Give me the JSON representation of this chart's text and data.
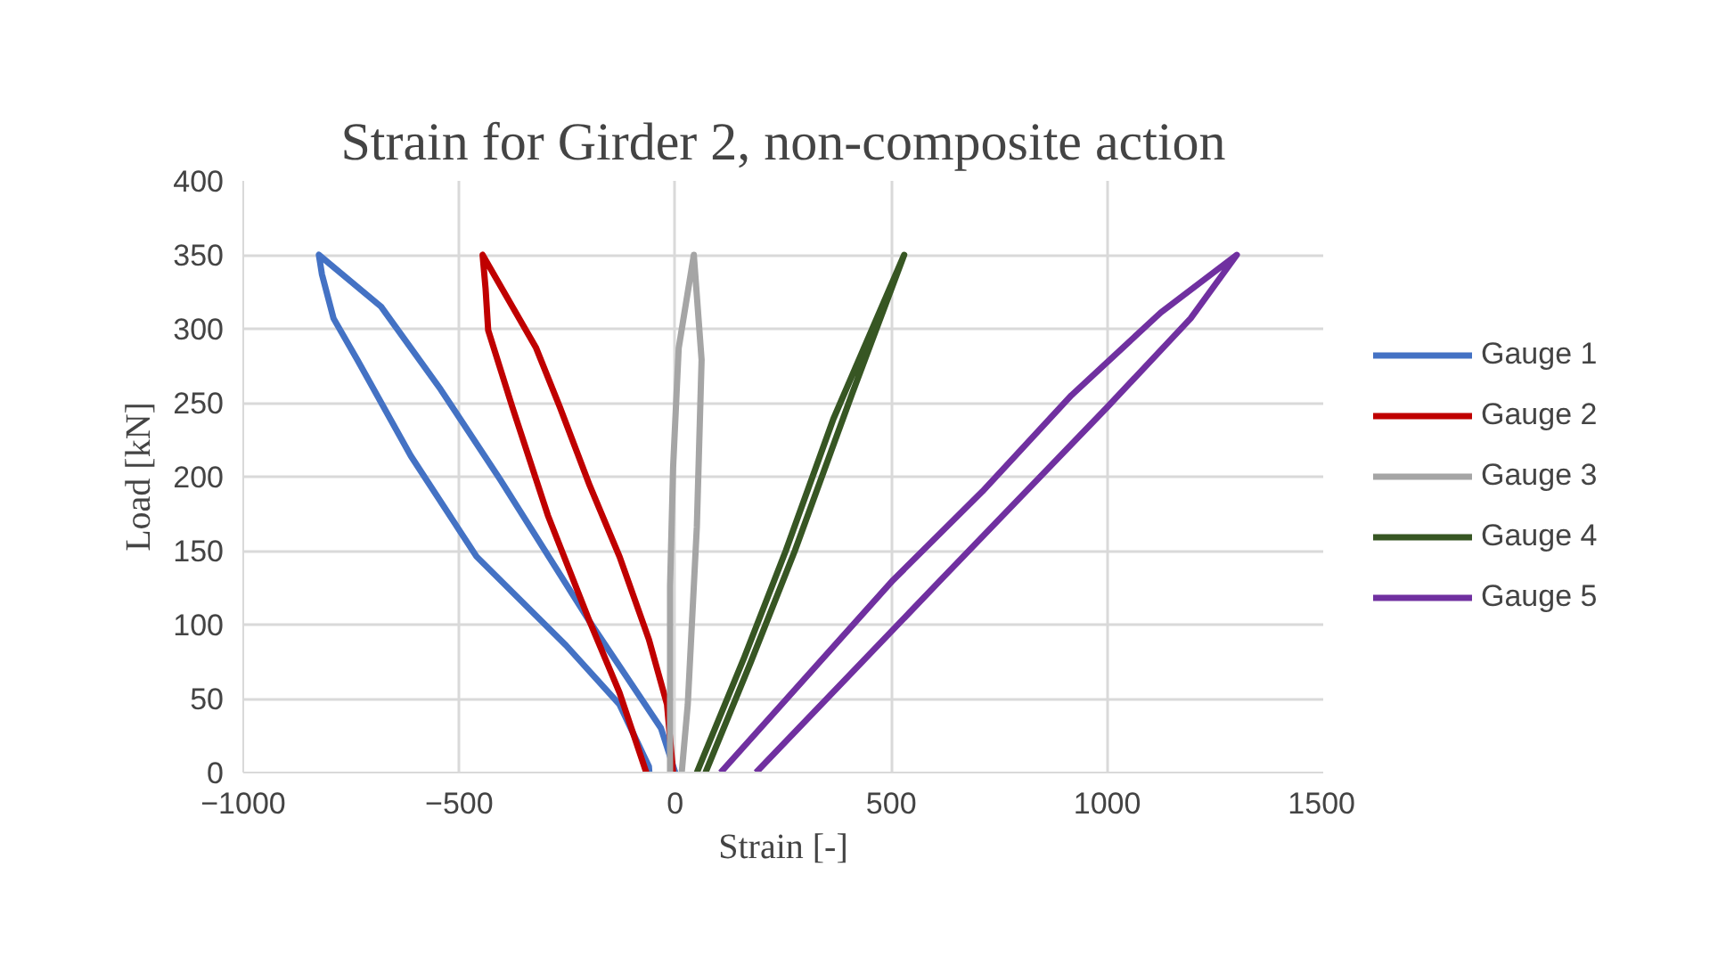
{
  "chart_data": {
    "type": "line",
    "title": "Strain for Girder 2, non-composite action",
    "xlabel": "Strain [-]",
    "ylabel": "Load [kN]",
    "xlim": [
      -1000,
      1500
    ],
    "xticks": [
      -1000,
      -500,
      0,
      500,
      1000,
      1500
    ],
    "ylim": [
      0,
      400
    ],
    "yticks": [
      0,
      50,
      100,
      150,
      200,
      250,
      300,
      350,
      400
    ],
    "grid": true,
    "legend": "right",
    "marker": "none",
    "line_style": "solid",
    "series": [
      {
        "name": "Gauge 1",
        "color": "#4472c4",
        "x": [
          0,
          -33,
          -198,
          -405,
          -543,
          -681,
          -825,
          -818,
          -791,
          -736,
          -612,
          -460,
          -253,
          -129,
          -61,
          -60
        ],
        "values": [
          0,
          30,
          102,
          198,
          259,
          315,
          350,
          337,
          307,
          279,
          214,
          146,
          86,
          46,
          4,
          0
        ]
      },
      {
        "name": "Gauge 2",
        "color": "#c00000",
        "x": [
          -5,
          -19,
          -61,
          -129,
          -198,
          -267,
          -322,
          -446,
          -439,
          -433,
          -377,
          -295,
          -198,
          -129,
          -67
        ],
        "values": [
          0,
          46,
          90,
          146,
          194,
          247,
          287,
          350,
          327,
          299,
          247,
          174,
          102,
          54,
          0
        ]
      },
      {
        "name": "Gauge 3",
        "color": "#a5a5a5",
        "x": [
          15,
          29,
          50,
          61,
          43,
          8,
          -5,
          -12,
          -12
        ],
        "values": [
          0,
          46,
          166,
          279,
          350,
          287,
          206,
          126,
          0
        ]
      },
      {
        "name": "Gauge 4",
        "color": "#375623",
        "x": [
          70,
          174,
          277,
          408,
          530,
          366,
          256,
          160,
          50
        ],
        "values": [
          0,
          74,
          150,
          255,
          350,
          239,
          150,
          78,
          0
        ]
      },
      {
        "name": "Gauge 5",
        "color": "#7030a0",
        "x": [
          187,
          614,
          1000,
          1193,
          1300,
          1124,
          917,
          711,
          504,
          105
        ],
        "values": [
          0,
          130,
          247,
          307,
          350,
          311,
          255,
          190,
          130,
          0
        ]
      }
    ]
  }
}
